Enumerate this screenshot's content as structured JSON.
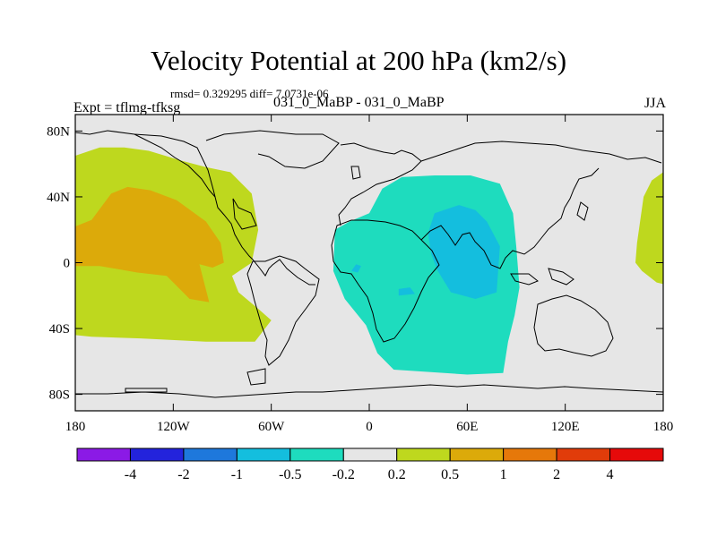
{
  "figure": {
    "title": "Velocity Potential at 200 hPa (km2/s)",
    "stats": "rmsd= 0.329295 diff= 7.0731e-06",
    "left_label": "Expt = tflmg-tfksg",
    "center_label": "031_0_MaBP - 031_0_MaBP",
    "right_label": "JJA"
  },
  "chart_data": {
    "type": "filled-contour map",
    "title": "Velocity Potential at 200 hPa (km2/s)",
    "subtitle": "rmsd= 0.329295 diff= 7.0731e-06",
    "projection": "cylindrical equidistant",
    "xlim": [
      -180,
      180
    ],
    "ylim": [
      -90,
      90
    ],
    "x_ticks": [
      {
        "value": -180,
        "label": "180"
      },
      {
        "value": -120,
        "label": "120W"
      },
      {
        "value": -60,
        "label": "60W"
      },
      {
        "value": 0,
        "label": "0"
      },
      {
        "value": 60,
        "label": "60E"
      },
      {
        "value": 120,
        "label": "120E"
      },
      {
        "value": 180,
        "label": "180"
      }
    ],
    "y_ticks": [
      {
        "value": 80,
        "label": "80N"
      },
      {
        "value": 40,
        "label": "40N"
      },
      {
        "value": 0,
        "label": "0"
      },
      {
        "value": -40,
        "label": "40S"
      },
      {
        "value": -80,
        "label": "80S"
      }
    ],
    "colorbar": {
      "levels": [
        "-4",
        "-2",
        "-1",
        "-0.5",
        "-0.2",
        "0.2",
        "0.5",
        "1",
        "2",
        "4"
      ],
      "colors": [
        "#8b1ae6",
        "#2323dc",
        "#1e78dc",
        "#14bede",
        "#1edcbe",
        "#e6e6e6",
        "#bed81e",
        "#dcaa0a",
        "#e6780a",
        "#e13c0a",
        "#e60a0a"
      ]
    },
    "regions": [
      {
        "name": "pacific-positive",
        "level_index": 6,
        "points": [
          [
            -180,
            65
          ],
          [
            -165,
            70
          ],
          [
            -150,
            70
          ],
          [
            -135,
            68
          ],
          [
            -115,
            62
          ],
          [
            -100,
            58
          ],
          [
            -85,
            55
          ],
          [
            -72,
            42
          ],
          [
            -68,
            20
          ],
          [
            -72,
            0
          ],
          [
            -84,
            -8
          ],
          [
            -80,
            -18
          ],
          [
            -68,
            -28
          ],
          [
            -60,
            -35
          ],
          [
            -70,
            -48
          ],
          [
            -100,
            -48
          ],
          [
            -140,
            -46
          ],
          [
            -170,
            -45
          ],
          [
            -180,
            -44
          ]
        ]
      },
      {
        "name": "pacific-high",
        "level_index": 7,
        "points": [
          [
            -180,
            22
          ],
          [
            -170,
            26
          ],
          [
            -158,
            42
          ],
          [
            -148,
            46
          ],
          [
            -134,
            44
          ],
          [
            -118,
            38
          ],
          [
            -100,
            25
          ],
          [
            -91,
            12
          ],
          [
            -89,
            0
          ],
          [
            -96,
            -3
          ],
          [
            -104,
            -1
          ],
          [
            -98,
            -24
          ],
          [
            -110,
            -22
          ],
          [
            -124,
            -8
          ],
          [
            -142,
            -6
          ],
          [
            -165,
            -2
          ],
          [
            -180,
            -2
          ]
        ]
      },
      {
        "name": "east-pacific-positive",
        "level_index": 6,
        "points": [
          [
            180,
            55
          ],
          [
            173,
            50
          ],
          [
            168,
            40
          ],
          [
            164,
            12
          ],
          [
            163,
            0
          ],
          [
            167,
            -5
          ],
          [
            176,
            -12
          ],
          [
            180,
            -13
          ]
        ]
      },
      {
        "name": "eurasia-africa-negative",
        "level_index": 4,
        "points": [
          [
            8,
            45
          ],
          [
            20,
            52
          ],
          [
            40,
            53
          ],
          [
            62,
            53
          ],
          [
            80,
            48
          ],
          [
            88,
            30
          ],
          [
            90,
            10
          ],
          [
            92,
            -15
          ],
          [
            89,
            -32
          ],
          [
            85,
            -48
          ],
          [
            82,
            -67
          ],
          [
            60,
            -68
          ],
          [
            15,
            -65
          ],
          [
            5,
            -55
          ],
          [
            -2,
            -38
          ],
          [
            -15,
            -22
          ],
          [
            -22,
            -5
          ],
          [
            -21,
            20
          ],
          [
            -12,
            25
          ],
          [
            0,
            30
          ]
        ]
      },
      {
        "name": "asia-core-negative",
        "level_index": 3,
        "points": [
          [
            40,
            30
          ],
          [
            55,
            35
          ],
          [
            65,
            32
          ],
          [
            72,
            25
          ],
          [
            80,
            10
          ],
          [
            78,
            -18
          ],
          [
            65,
            -22
          ],
          [
            50,
            -18
          ],
          [
            42,
            -5
          ],
          [
            38,
            5
          ],
          [
            36,
            18
          ]
        ]
      },
      {
        "name": "atlantic-negative-spot",
        "level_index": 3,
        "points": [
          [
            -8,
            -1
          ],
          [
            -5,
            -2
          ],
          [
            -7,
            -6
          ],
          [
            -11,
            -5
          ]
        ]
      },
      {
        "name": "indian-ocean-negative-spot",
        "level_index": 3,
        "points": [
          [
            18,
            -16
          ],
          [
            25,
            -15
          ],
          [
            28,
            -19
          ],
          [
            18,
            -20
          ]
        ]
      }
    ]
  }
}
